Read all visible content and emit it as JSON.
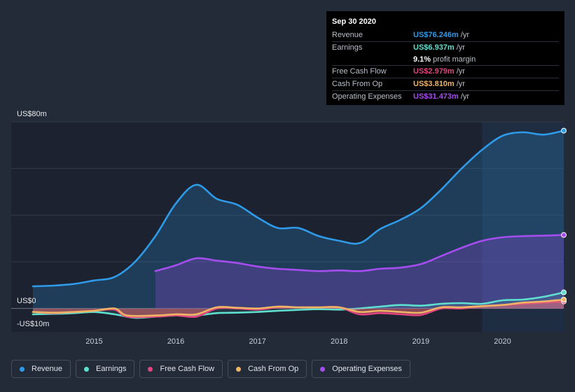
{
  "tooltip": {
    "date": "Sep 30 2020",
    "rows": [
      {
        "label": "Revenue",
        "value": "US$76.246m",
        "unit": "/yr",
        "color": "#2f9be8"
      },
      {
        "label": "Earnings",
        "value": "US$6.937m",
        "unit": "/yr",
        "color": "#5fe0cf"
      },
      {
        "label": "",
        "value": "9.1%",
        "unit": "profit margin",
        "color": "#ffffff"
      },
      {
        "label": "Free Cash Flow",
        "value": "US$2.979m",
        "unit": "/yr",
        "color": "#e0457f"
      },
      {
        "label": "Cash From Op",
        "value": "US$3.810m",
        "unit": "/yr",
        "color": "#f0b465"
      },
      {
        "label": "Operating Expenses",
        "value": "US$31.473m",
        "unit": "/yr",
        "color": "#a64df0"
      }
    ]
  },
  "axis": {
    "top_label": "US$80m",
    "zero_label": "US$0",
    "bottom_label": "-US$10m"
  },
  "legend": [
    {
      "label": "Revenue",
      "color": "#2f9be8"
    },
    {
      "label": "Earnings",
      "color": "#5fe0cf"
    },
    {
      "label": "Free Cash Flow",
      "color": "#e0457f"
    },
    {
      "label": "Cash From Op",
      "color": "#f0b465"
    },
    {
      "label": "Operating Expenses",
      "color": "#a64df0"
    }
  ],
  "chart_data": {
    "type": "area",
    "title": "",
    "xlabel": "",
    "ylabel": "",
    "ylim": [
      -10,
      80
    ],
    "xlim": [
      2014.25,
      2020.75
    ],
    "x_ticks": [
      2015,
      2016,
      2017,
      2018,
      2019,
      2020
    ],
    "forecast_shaded_from": 2019.75,
    "series": [
      {
        "name": "Revenue",
        "color": "#2f9be8",
        "fill": true,
        "x": [
          2014.25,
          2014.5,
          2014.75,
          2015.0,
          2015.25,
          2015.5,
          2015.75,
          2016.0,
          2016.25,
          2016.5,
          2016.75,
          2017.0,
          2017.25,
          2017.5,
          2017.75,
          2018.0,
          2018.25,
          2018.5,
          2018.75,
          2019.0,
          2019.25,
          2019.5,
          2019.75,
          2020.0,
          2020.25,
          2020.5,
          2020.75
        ],
        "y": [
          9.5,
          9.8,
          10.5,
          12.0,
          13.5,
          20.0,
          31.0,
          45.0,
          53.0,
          47.0,
          44.5,
          39.0,
          34.5,
          34.5,
          31.0,
          29.0,
          28.0,
          34.0,
          38.0,
          43.0,
          51.0,
          60.0,
          68.0,
          74.0,
          75.5,
          74.5,
          76.2
        ]
      },
      {
        "name": "Operating Expenses",
        "color": "#a64df0",
        "fill": true,
        "x": [
          2015.75,
          2016.0,
          2016.25,
          2016.5,
          2016.75,
          2017.0,
          2017.25,
          2017.5,
          2017.75,
          2018.0,
          2018.25,
          2018.5,
          2018.75,
          2019.0,
          2019.25,
          2019.5,
          2019.75,
          2020.0,
          2020.25,
          2020.5,
          2020.75
        ],
        "y": [
          16.0,
          18.5,
          21.5,
          20.5,
          19.5,
          18.0,
          17.0,
          16.5,
          16.0,
          16.3,
          16.0,
          17.0,
          17.5,
          19.0,
          22.5,
          26.0,
          29.0,
          30.5,
          31.0,
          31.2,
          31.5
        ]
      },
      {
        "name": "Earnings",
        "color": "#5fe0cf",
        "fill": true,
        "x": [
          2014.25,
          2014.5,
          2014.75,
          2015.0,
          2015.25,
          2015.5,
          2015.75,
          2016.0,
          2016.25,
          2016.5,
          2016.75,
          2017.0,
          2017.25,
          2017.5,
          2017.75,
          2018.0,
          2018.25,
          2018.5,
          2018.75,
          2019.0,
          2019.25,
          2019.5,
          2019.75,
          2020.0,
          2020.25,
          2020.5,
          2020.75
        ],
        "y": [
          -2.5,
          -2.3,
          -2.0,
          -1.5,
          -2.5,
          -4.0,
          -3.5,
          -3.0,
          -3.0,
          -2.0,
          -1.8,
          -1.5,
          -1.0,
          -0.6,
          -0.3,
          -0.5,
          0.0,
          0.8,
          1.5,
          1.2,
          2.0,
          2.3,
          2.0,
          3.5,
          3.8,
          5.0,
          6.9
        ]
      },
      {
        "name": "Free Cash Flow",
        "color": "#e0457f",
        "fill": true,
        "x": [
          2014.25,
          2014.5,
          2014.75,
          2015.0,
          2015.25,
          2015.4,
          2015.75,
          2016.0,
          2016.25,
          2016.5,
          2016.75,
          2017.0,
          2017.25,
          2017.5,
          2017.75,
          2018.0,
          2018.25,
          2018.5,
          2018.75,
          2019.0,
          2019.25,
          2019.5,
          2019.75,
          2020.0,
          2020.25,
          2020.5,
          2020.75
        ],
        "y": [
          -1.5,
          -2.0,
          -1.5,
          -1.0,
          -0.5,
          -3.5,
          -3.5,
          -3.0,
          -3.5,
          0.0,
          0.0,
          -0.5,
          0.5,
          0.5,
          0.5,
          0.5,
          -2.5,
          -2.0,
          -2.5,
          -2.8,
          0.0,
          0.0,
          1.0,
          1.5,
          2.0,
          2.5,
          3.0
        ]
      },
      {
        "name": "Cash From Op",
        "color": "#f0b465",
        "fill": true,
        "x": [
          2014.25,
          2014.5,
          2014.75,
          2015.0,
          2015.25,
          2015.4,
          2015.75,
          2016.0,
          2016.25,
          2016.5,
          2016.75,
          2017.0,
          2017.25,
          2017.5,
          2017.75,
          2018.0,
          2018.25,
          2018.5,
          2018.75,
          2019.0,
          2019.25,
          2019.5,
          2019.75,
          2020.0,
          2020.25,
          2020.5,
          2020.75
        ],
        "y": [
          -1.5,
          -1.8,
          -1.5,
          -1.0,
          0.0,
          -3.0,
          -3.0,
          -2.5,
          -2.5,
          0.5,
          0.3,
          0.0,
          0.8,
          0.5,
          0.5,
          0.5,
          -1.5,
          -1.0,
          -1.5,
          -1.8,
          0.5,
          0.5,
          1.0,
          1.5,
          2.5,
          3.0,
          3.8
        ]
      }
    ]
  }
}
